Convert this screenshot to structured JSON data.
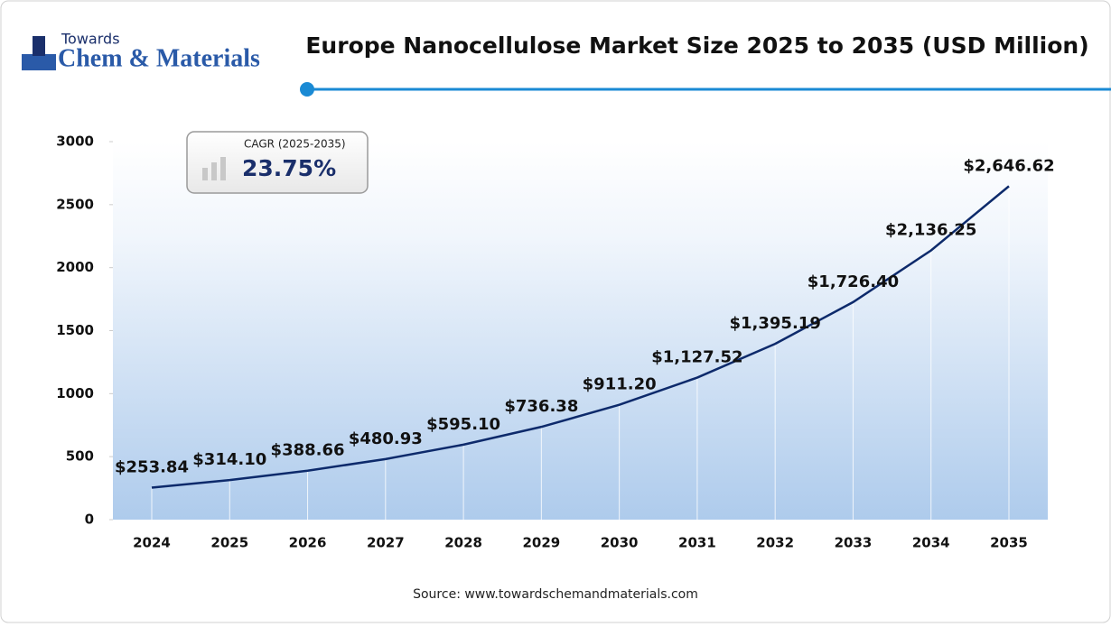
{
  "logo": {
    "top": "Towards",
    "main": "Chem & Materials"
  },
  "chart_data": {
    "type": "line",
    "title": "Europe Nanocellulose Market Size 2025 to 2035 (USD Million)",
    "categories": [
      "2024",
      "2025",
      "2026",
      "2027",
      "2028",
      "2029",
      "2030",
      "2031",
      "2032",
      "2033",
      "2034",
      "2035"
    ],
    "values": [
      253.84,
      314.1,
      388.66,
      480.93,
      595.1,
      736.38,
      911.2,
      1127.52,
      1395.19,
      1726.4,
      2136.25,
      2646.62
    ],
    "value_labels": [
      "$253.84",
      "$314.10",
      "$388.66",
      "$480.93",
      "$595.10",
      "$736.38",
      "$911.20",
      "$1,127.52",
      "$1,395.19",
      "$1,726.40",
      "$2,136.25",
      "$2,646.62"
    ],
    "color": "#0d2a6b",
    "ylim": [
      0,
      3000
    ],
    "yticks": [
      0,
      500,
      1000,
      1500,
      2000,
      2500,
      3000
    ],
    "cagr_label": "CAGR (2025-2035)",
    "cagr_value": "23.75%",
    "source": "Source: www.towardschemandmaterials.com"
  }
}
